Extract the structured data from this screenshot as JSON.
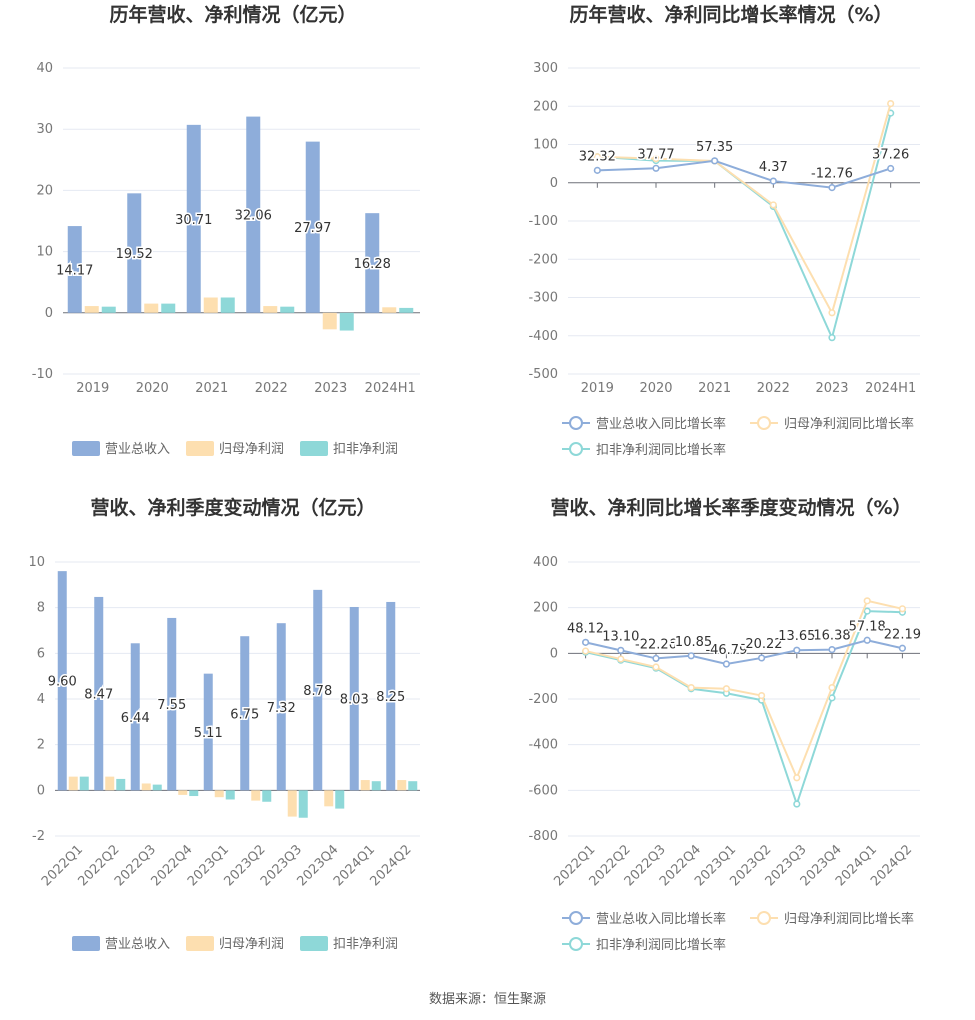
{
  "colors": {
    "revenue": "#8eadda",
    "net_profit": "#fddfb0",
    "deducted_profit": "#8ed8d8",
    "text": "#333333",
    "axis_text": "#777777",
    "grid": "#e5e9f2"
  },
  "source": "数据来源：恒生聚源",
  "chart_data": [
    {
      "type": "bar",
      "title": "历年营收、净利情况（亿元）",
      "categories": [
        "2019",
        "2020",
        "2021",
        "2022",
        "2023",
        "2024H1"
      ],
      "yticks": [
        -10,
        0,
        10,
        20,
        30,
        40
      ],
      "ylim": [
        -10,
        40
      ],
      "series": [
        {
          "name": "营业总收入",
          "values": [
            14.17,
            19.52,
            30.71,
            32.06,
            27.97,
            16.28
          ],
          "labels": [
            "14.17",
            "19.52",
            "30.71",
            "32.06",
            "27.97",
            "16.28"
          ]
        },
        {
          "name": "归母净利润",
          "values": [
            1.1,
            1.5,
            2.5,
            1.1,
            -2.7,
            0.9
          ]
        },
        {
          "name": "扣非净利润",
          "values": [
            1.0,
            1.5,
            2.5,
            1.0,
            -2.9,
            0.8
          ]
        }
      ],
      "legend": "bottom"
    },
    {
      "type": "line",
      "title": "历年营收、净利同比增长率情况（%）",
      "categories": [
        "2019",
        "2020",
        "2021",
        "2022",
        "2023",
        "2024H1"
      ],
      "yticks": [
        -500,
        -400,
        -300,
        -200,
        -100,
        0,
        100,
        200,
        300
      ],
      "ylim": [
        -500,
        300
      ],
      "series": [
        {
          "name": "营业总收入同比增长率",
          "values": [
            32.32,
            37.77,
            57.35,
            4.37,
            -12.76,
            37.26
          ],
          "labels": [
            "32.32",
            "37.77",
            "57.35",
            "4.37",
            "-12.76",
            "37.26"
          ]
        },
        {
          "name": "归母净利润同比增长率",
          "values": [
            68,
            63,
            57,
            -58,
            -340,
            207
          ]
        },
        {
          "name": "扣非净利润同比增长率",
          "values": [
            68,
            58,
            57,
            -62,
            -405,
            182
          ]
        }
      ],
      "legend": "bottom"
    },
    {
      "type": "bar",
      "title": "营收、净利季度变动情况（亿元）",
      "categories": [
        "2022Q1",
        "2022Q2",
        "2022Q3",
        "2022Q4",
        "2023Q1",
        "2023Q2",
        "2023Q3",
        "2023Q4",
        "2024Q1",
        "2024Q2"
      ],
      "yticks": [
        -2,
        0,
        2,
        4,
        6,
        8,
        10
      ],
      "ylim": [
        -2,
        10
      ],
      "series": [
        {
          "name": "营业总收入",
          "values": [
            9.6,
            8.47,
            6.44,
            7.55,
            5.11,
            6.75,
            7.32,
            8.78,
            8.03,
            8.25
          ],
          "labels": [
            "9.60",
            "8.47",
            "6.44",
            "7.55",
            "5.11",
            "6.75",
            "7.32",
            "8.78",
            "8.03",
            "8.25"
          ]
        },
        {
          "name": "归母净利润",
          "values": [
            0.6,
            0.6,
            0.3,
            -0.2,
            -0.3,
            -0.45,
            -1.15,
            -0.7,
            0.45,
            0.45
          ]
        },
        {
          "name": "扣非净利润",
          "values": [
            0.6,
            0.5,
            0.25,
            -0.25,
            -0.4,
            -0.5,
            -1.2,
            -0.8,
            0.4,
            0.4
          ]
        }
      ],
      "legend": "bottom"
    },
    {
      "type": "line",
      "title": "营收、净利同比增长率季度变动情况（%）",
      "categories": [
        "2022Q1",
        "2022Q2",
        "2022Q3",
        "2022Q4",
        "2023Q1",
        "2023Q2",
        "2023Q3",
        "2023Q4",
        "2024Q1",
        "2024Q2"
      ],
      "yticks": [
        -800,
        -600,
        -400,
        -200,
        0,
        200,
        400
      ],
      "ylim": [
        -800,
        400
      ],
      "series": [
        {
          "name": "营业总收入同比增长率",
          "values": [
            48.12,
            13.1,
            -22.26,
            -10.85,
            -46.79,
            -20.22,
            13.65,
            16.38,
            57.18,
            22.19
          ],
          "labels": [
            "48.12",
            "13.10",
            "-22.26",
            "-10.85",
            "-46.79",
            "-20.22",
            "13.65",
            "16.38",
            "57.18",
            "22.19"
          ]
        },
        {
          "name": "归母净利润同比增长率",
          "values": [
            10,
            -25,
            -60,
            -150,
            -155,
            -185,
            -545,
            -150,
            230,
            195
          ]
        },
        {
          "name": "扣非净利润同比增长率",
          "values": [
            5,
            -30,
            -65,
            -155,
            -175,
            -205,
            -660,
            -195,
            185,
            180
          ]
        }
      ],
      "legend": "bottom"
    }
  ]
}
